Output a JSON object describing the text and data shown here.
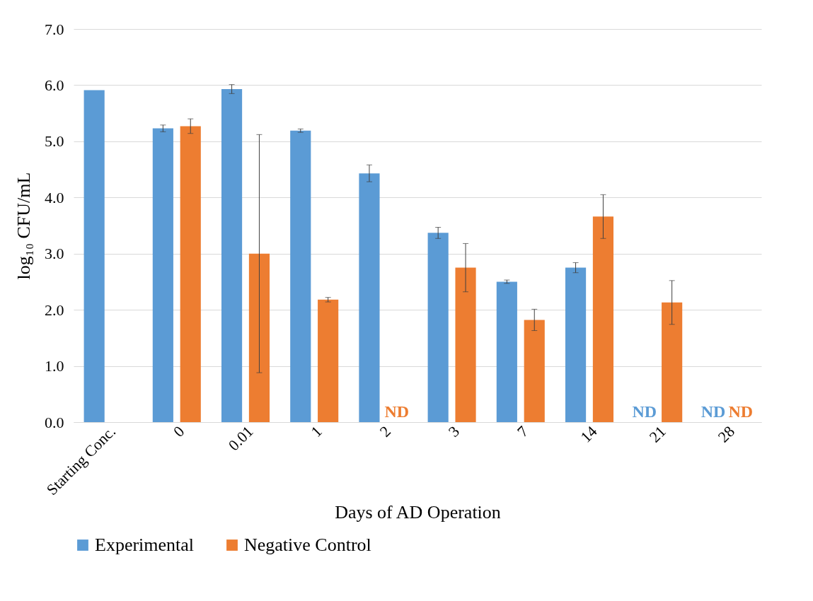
{
  "chart_data": {
    "type": "bar",
    "xlabel": "Days of AD Operation",
    "ylabel": "log₁₀ CFU/mL",
    "categories": [
      "Starting Conc.",
      "0",
      "0.01",
      "1",
      "2",
      "3",
      "7",
      "14",
      "21",
      "28"
    ],
    "series": [
      {
        "name": "Experimental",
        "color": "#5b9bd5",
        "values": [
          5.91,
          5.23,
          5.93,
          5.19,
          4.43,
          3.37,
          2.5,
          2.75,
          null,
          null
        ],
        "errors": [
          null,
          0.06,
          0.08,
          0.03,
          0.15,
          0.1,
          0.03,
          0.09,
          null,
          null
        ]
      },
      {
        "name": "Negative Control",
        "color": "#ed7d31",
        "values": [
          0,
          5.27,
          3.0,
          2.18,
          null,
          2.75,
          1.82,
          3.66,
          2.13,
          null
        ],
        "errors": [
          null,
          0.13,
          2.12,
          0.04,
          null,
          0.43,
          0.19,
          0.39,
          0.39,
          null
        ]
      }
    ],
    "ylim": [
      0,
      7
    ],
    "yticks": [
      {
        "value": 0,
        "label": "0.0"
      },
      {
        "value": 1,
        "label": "1.0"
      },
      {
        "value": 2,
        "label": "2.0"
      },
      {
        "value": 3,
        "label": "3.0"
      },
      {
        "value": 4,
        "label": "4.0"
      },
      {
        "value": 5,
        "label": "5.0"
      },
      {
        "value": 6,
        "label": "6.0"
      },
      {
        "value": 7,
        "label": "7.0"
      }
    ],
    "grid": "y",
    "legend": "bottom",
    "annotations": [
      "ND",
      "ND",
      "ND",
      "ND"
    ]
  }
}
